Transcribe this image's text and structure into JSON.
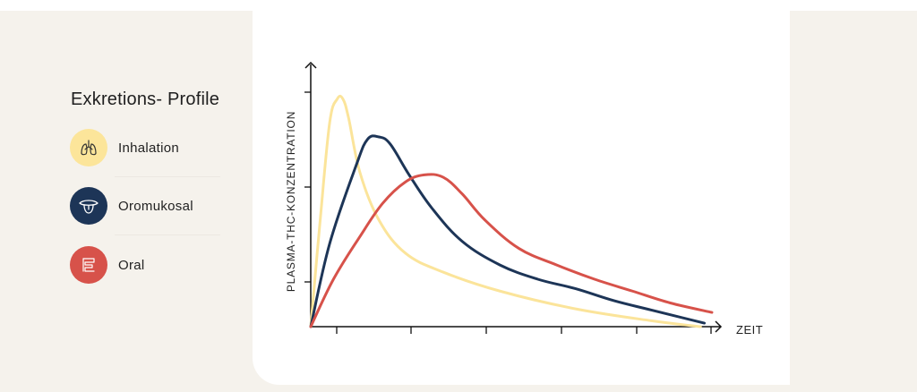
{
  "legend": {
    "title": "Exkretions- Profile",
    "items": [
      {
        "label": "Inhalation",
        "icon": "lungs-icon",
        "color": "#fce59a"
      },
      {
        "label": "Oromukosal",
        "icon": "tongue-icon",
        "color": "#1d3557"
      },
      {
        "label": "Oral",
        "icon": "intestine-icon",
        "color": "#d7524a"
      }
    ]
  },
  "chart_data": {
    "type": "line",
    "xlabel": "ZEIT",
    "ylabel": "PLASMA-THC-KONZENTRATION",
    "xlim": [
      0,
      10.6
    ],
    "ylim": [
      0,
      10
    ],
    "x_ticks": 5,
    "y_ticks": 3,
    "tick_labels_shown": false,
    "grid": false,
    "series": [
      {
        "name": "Inhalation",
        "color": "#fbe49a",
        "points": [
          [
            0,
            0
          ],
          [
            0.25,
            4.5
          ],
          [
            0.5,
            8.6
          ],
          [
            0.7,
            9.6
          ],
          [
            0.85,
            9.6
          ],
          [
            1.0,
            8.8
          ],
          [
            1.3,
            6.5
          ],
          [
            1.8,
            4.5
          ],
          [
            2.5,
            3.1
          ],
          [
            3.5,
            2.3
          ],
          [
            5,
            1.5
          ],
          [
            7,
            0.75
          ],
          [
            9,
            0.25
          ],
          [
            10.3,
            0
          ]
        ]
      },
      {
        "name": "Oromukosal",
        "color": "#1d3557",
        "points": [
          [
            0,
            0
          ],
          [
            0.5,
            3.5
          ],
          [
            1.2,
            6.8
          ],
          [
            1.5,
            7.9
          ],
          [
            1.8,
            8.0
          ],
          [
            2.1,
            7.7
          ],
          [
            2.6,
            6.4
          ],
          [
            3.2,
            5.0
          ],
          [
            4,
            3.6
          ],
          [
            5,
            2.6
          ],
          [
            6,
            2.0
          ],
          [
            7,
            1.6
          ],
          [
            8,
            1.1
          ],
          [
            9,
            0.7
          ],
          [
            10.4,
            0.15
          ]
        ]
      },
      {
        "name": "Oral",
        "color": "#d7524a",
        "points": [
          [
            0,
            0
          ],
          [
            0.6,
            2.0
          ],
          [
            1.3,
            3.8
          ],
          [
            1.9,
            5.2
          ],
          [
            2.5,
            6.1
          ],
          [
            3,
            6.4
          ],
          [
            3.5,
            6.3
          ],
          [
            4,
            5.6
          ],
          [
            4.6,
            4.5
          ],
          [
            5.5,
            3.3
          ],
          [
            6.5,
            2.6
          ],
          [
            7.5,
            2.0
          ],
          [
            8.5,
            1.5
          ],
          [
            9.5,
            1.0
          ],
          [
            10.6,
            0.6
          ]
        ]
      }
    ]
  }
}
